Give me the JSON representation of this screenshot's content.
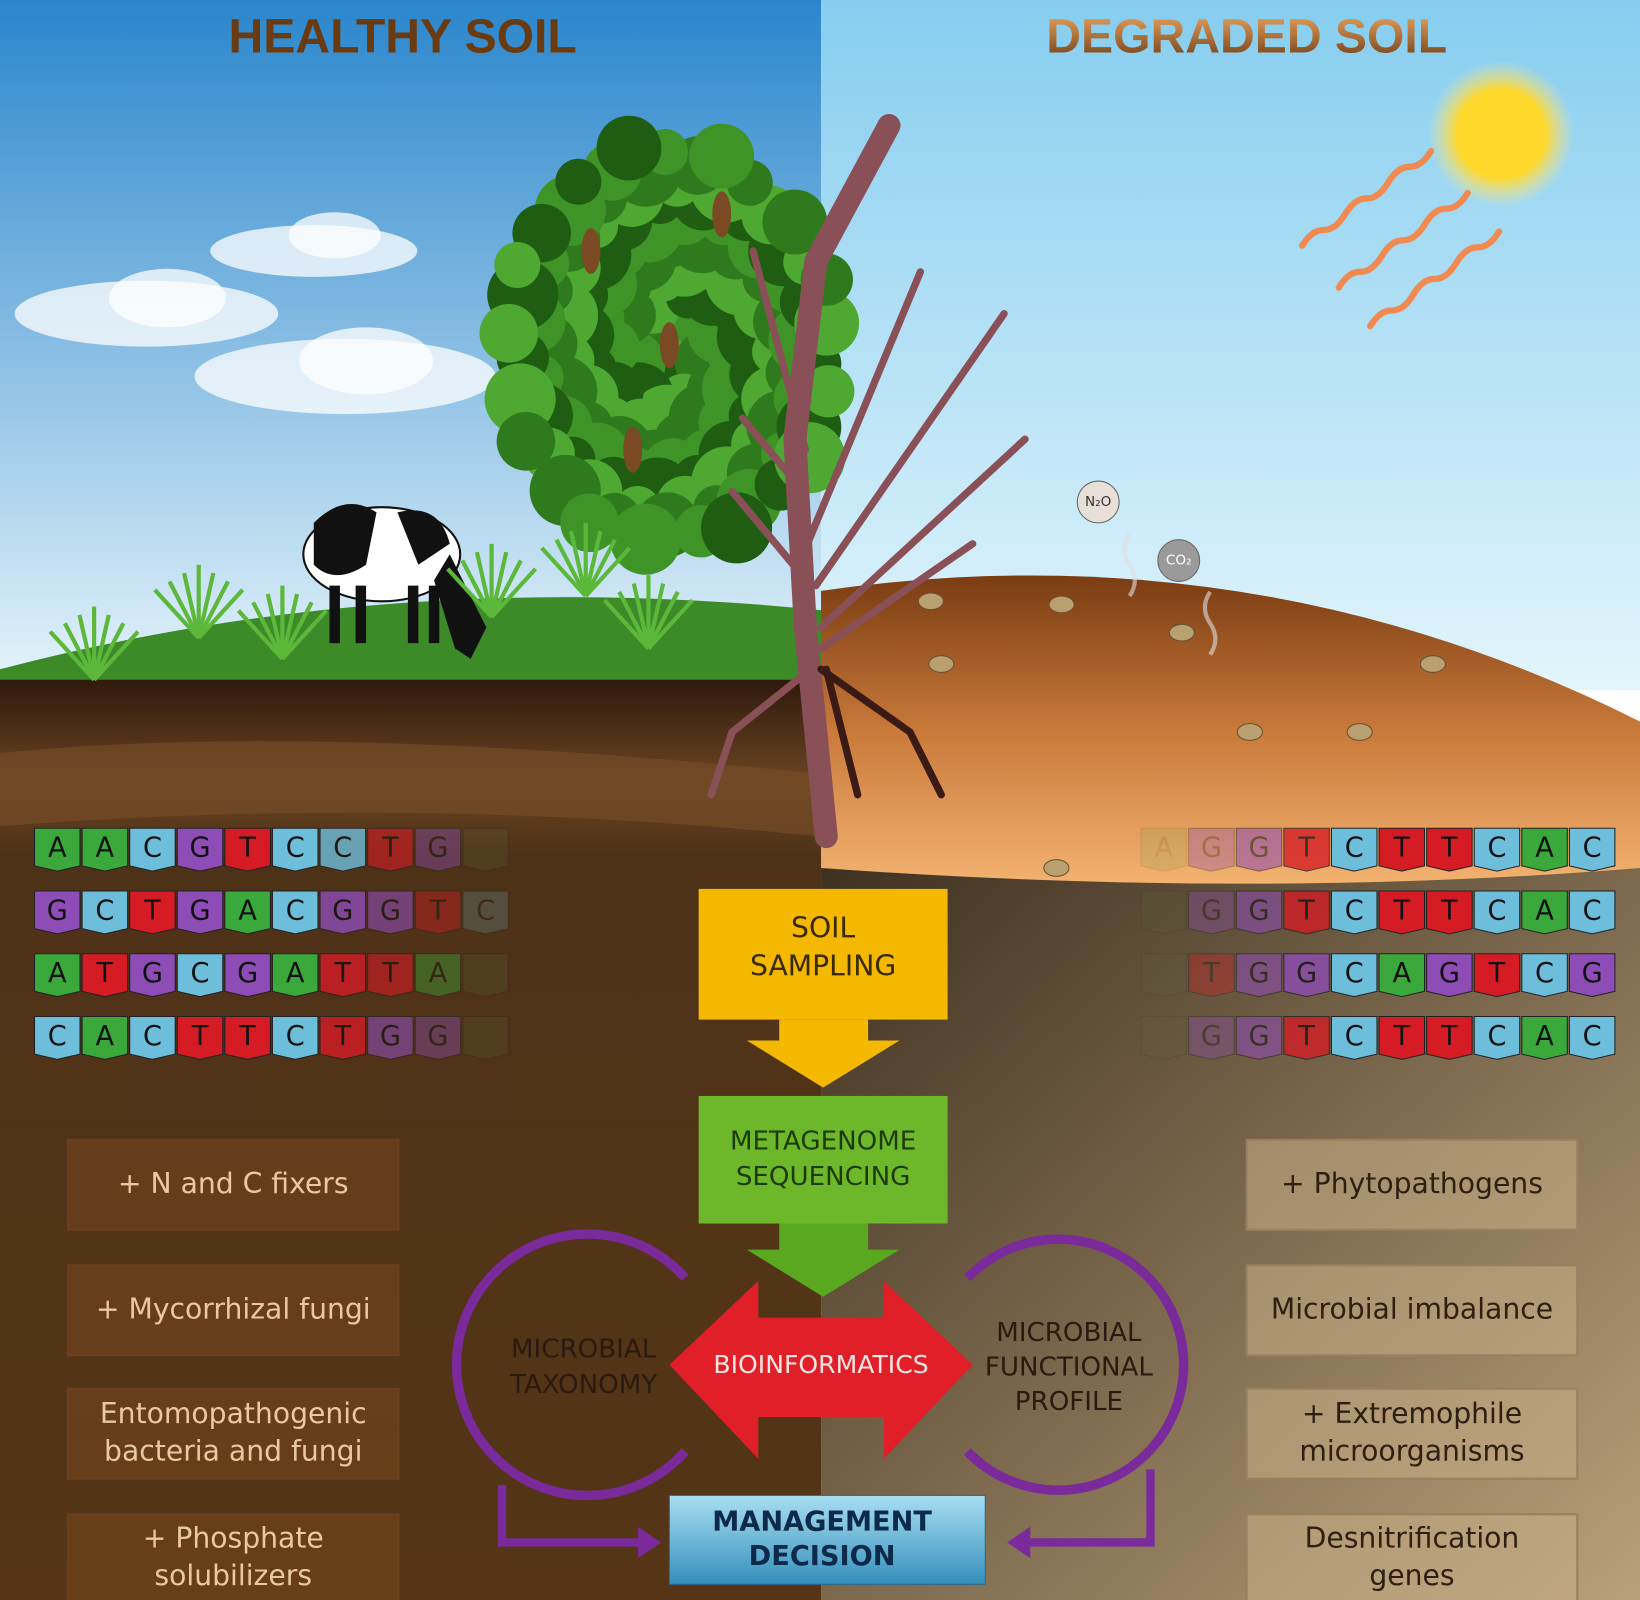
{
  "header": {
    "healthy_title": "HEALTHY SOIL",
    "degraded_title": "DEGRADED SOIL"
  },
  "gases": [
    "N₂O",
    "CO₂"
  ],
  "dna": {
    "healthy": [
      "AACGTCCTG",
      "GCTGACGGTC",
      "ATGCGATTA",
      "CACTTCTGG"
    ],
    "degraded": [
      "AGGTCTTCAC",
      "GGTCTTCAC",
      "TGGCAGTCG",
      "GGTCTTCAC"
    ]
  },
  "workflow": {
    "sampling": [
      "SOIL",
      "SAMPLING"
    ],
    "sequencing": [
      "METAGENOME",
      "SEQUENCING"
    ],
    "bioinformatics": "BIOINFORMATICS",
    "taxonomy": [
      "MICROBIAL",
      "TAXONOMY"
    ],
    "functional": [
      "MICROBIAL",
      "FUNCTIONAL",
      "PROFILE"
    ],
    "decision": [
      "MANAGEMENT",
      "DECISION"
    ]
  },
  "healthy_traits": [
    [
      "+ N and C fixers"
    ],
    [
      "+ Mycorrhizal fungi"
    ],
    [
      "Entomopathogenic",
      "bacteria and fungi"
    ],
    [
      "+ Phosphate",
      "solubilizers"
    ]
  ],
  "degraded_traits": [
    [
      "+ Phytopathogens"
    ],
    [
      "Microbial imbalance"
    ],
    [
      "+ Extremophile",
      "microorganisms"
    ],
    [
      "Desnitrification",
      "genes"
    ]
  ]
}
